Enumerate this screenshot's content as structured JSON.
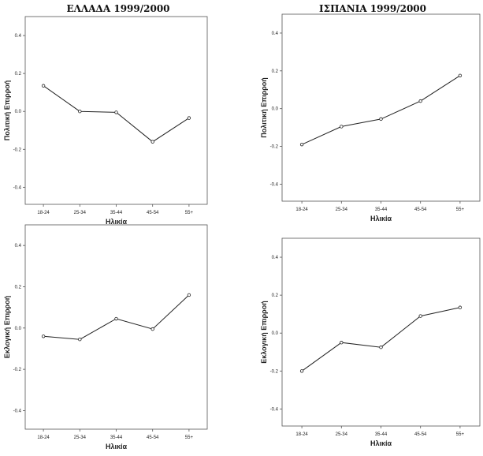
{
  "titles": {
    "left": "ΕΛΛΑΔΑ 1999/2000",
    "right": "ΙΣΠΑΝΙΑ 1999/2000"
  },
  "chart_data": [
    {
      "type": "line",
      "title": "ΕΛΛΑΔΑ 1999/2000",
      "xlabel": "Ηλικία",
      "ylabel": "Πολιτική Επιρροή",
      "categories": [
        "18-24",
        "25-34",
        "35-44",
        "45-54",
        "55+"
      ],
      "values": [
        0.135,
        0.0,
        -0.005,
        -0.16,
        -0.035
      ],
      "yticks": [
        "0.4",
        "0.2",
        "0.0",
        "-0.2",
        "-0.4"
      ],
      "ylim": [
        -0.49,
        0.5
      ],
      "grid": false
    },
    {
      "type": "line",
      "title": "ΙΣΠΑΝΙΑ 1999/2000",
      "xlabel": "Ηλικία",
      "ylabel": "Πολιτική Επιρροή",
      "categories": [
        "18-24",
        "25-34",
        "35-44",
        "45-54",
        "55+"
      ],
      "values": [
        -0.19,
        -0.095,
        -0.055,
        0.04,
        0.175
      ],
      "yticks": [
        "0.4",
        "0.2",
        "0.0",
        "-0.2",
        "-0.4"
      ],
      "ylim": [
        -0.49,
        0.5
      ],
      "grid": false
    },
    {
      "type": "line",
      "title": "",
      "xlabel": "Ηλικία",
      "ylabel": "Εκλογική Επιρροή",
      "categories": [
        "18-24",
        "25-34",
        "35-44",
        "45-54",
        "55+"
      ],
      "values": [
        -0.04,
        -0.055,
        0.045,
        -0.005,
        0.16
      ],
      "yticks": [
        "0.4",
        "0.2",
        "0.0",
        "-0.2",
        "-0.4"
      ],
      "ylim": [
        -0.49,
        0.5
      ],
      "grid": false
    },
    {
      "type": "line",
      "title": "",
      "xlabel": "Ηλικία",
      "ylabel": "Εκλογική Επιρροή",
      "categories": [
        "18-24",
        "25-34",
        "35-44",
        "45-54",
        "55+"
      ],
      "values": [
        -0.2,
        -0.05,
        -0.075,
        0.09,
        0.135
      ],
      "yticks": [
        "0.4",
        "0.2",
        "0.0",
        "-0.2",
        "-0.4"
      ],
      "ylim": [
        -0.49,
        0.5
      ],
      "grid": false
    }
  ]
}
